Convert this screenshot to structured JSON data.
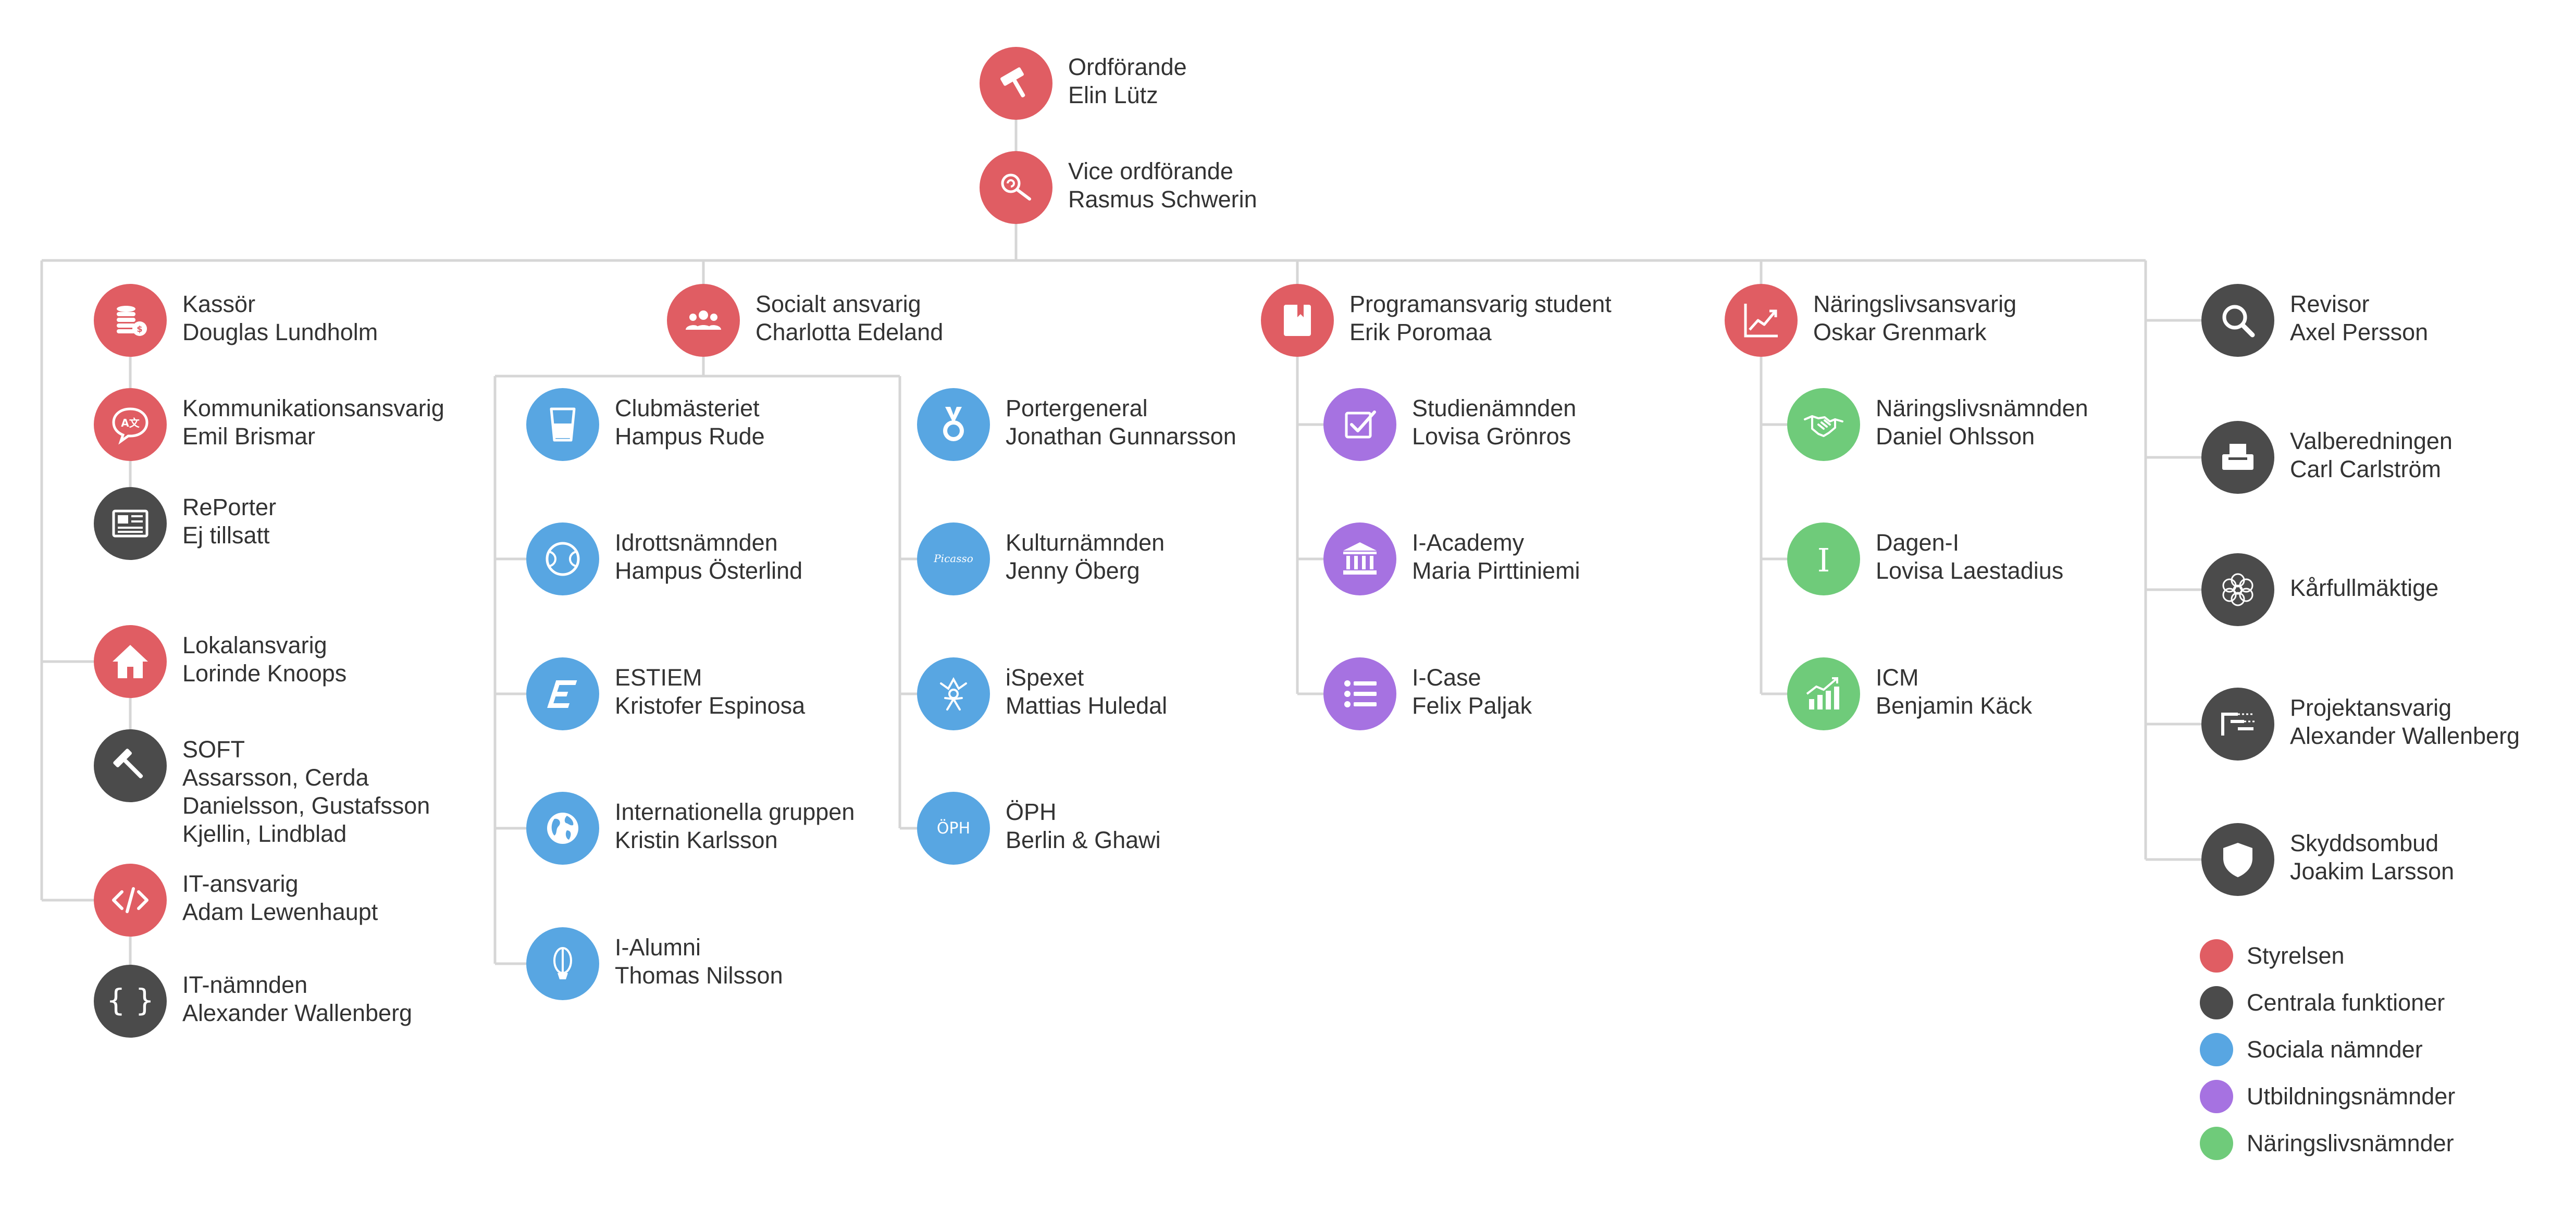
{
  "colors": {
    "styrelsen": "#e05d63",
    "centrala": "#4b4b4b",
    "sociala": "#58a6e2",
    "utbildning": "#a672e1",
    "naringsliv": "#6fcb7a",
    "lines": "#d6d6d6"
  },
  "nodes": {
    "ordforande": {
      "icon": "gavel-icon",
      "role": "Ordförande",
      "name": "Elin Lütz"
    },
    "vice": {
      "icon": "lollipop-icon",
      "role": "Vice ordförande",
      "name": "Rasmus Schwerin"
    },
    "kassor": {
      "icon": "coins-icon",
      "role": "Kassör",
      "name": "Douglas Lundholm"
    },
    "kommunikation": {
      "icon": "speech-bubble-icon",
      "role": "Kommunikationsansvarig",
      "name": "Emil Brismar"
    },
    "reporter": {
      "icon": "newspaper-icon",
      "role": "RePorter",
      "name": "Ej tillsatt"
    },
    "lokal": {
      "icon": "house-icon",
      "role": "Lokalansvarig",
      "name": "Lorinde Knoops"
    },
    "soft": {
      "icon": "hammer-icon",
      "role": "SOFT",
      "lines": [
        "Assarsson, Cerda",
        "Danielsson, Gustafsson",
        "Kjellin, Lindblad"
      ]
    },
    "it": {
      "icon": "code-icon",
      "role": "IT-ansvarig",
      "name": "Adam Lewenhaupt"
    },
    "itnamnden": {
      "icon": "braces-icon",
      "role": "IT-nämnden",
      "name": "Alexander Wallenberg"
    },
    "socialt": {
      "icon": "people-icon",
      "role": "Socialt ansvarig",
      "name": "Charlotta Edeland"
    },
    "club": {
      "icon": "glass-icon",
      "role": "Clubmästeriet",
      "name": "Hampus Rude"
    },
    "idrott": {
      "icon": "tennis-ball-icon",
      "role": "Idrottsnämnden",
      "name": "Hampus Österlind"
    },
    "estiem": {
      "icon": "estiem-logo-icon",
      "role": "ESTIEM",
      "name": "Kristofer Espinosa"
    },
    "internationella": {
      "icon": "globe-icon",
      "role": "Internationella gruppen",
      "name": "Kristin Karlsson"
    },
    "ialumni": {
      "icon": "alumni-logo-icon",
      "role": "I-Alumni",
      "name": "Thomas Nilsson"
    },
    "porter": {
      "icon": "medal-icon",
      "role": "Portergeneral",
      "name": "Jonathan Gunnarsson"
    },
    "kultur": {
      "icon": "picasso-logo-icon",
      "role": "Kulturnämnden",
      "name": "Jenny Öberg",
      "logo_text": "Picasso"
    },
    "ispexet": {
      "icon": "jester-icon",
      "role": "iSpexet",
      "name": "Mattias Huledal"
    },
    "oph": {
      "icon": "oph-logo-icon",
      "role": "ÖPH",
      "name": "Berlin & Ghawi",
      "logo_text": "ÖPH"
    },
    "program": {
      "icon": "book-icon",
      "role": "Programansvarig student",
      "name": "Erik Poromaa"
    },
    "studie": {
      "icon": "checkbox-icon",
      "role": "Studienämnden",
      "name": "Lovisa Grönros"
    },
    "iacademy": {
      "icon": "institution-icon",
      "role": "I-Academy",
      "name": "Maria Pirttiniemi"
    },
    "icase": {
      "icon": "list-icon",
      "role": "I-Case",
      "name": "Felix Paljak"
    },
    "naringsliv": {
      "icon": "chart-icon",
      "role": "Näringslivsansvarig",
      "name": "Oskar Grenmark"
    },
    "nlnamnden": {
      "icon": "handshake-icon",
      "role": "Näringslivsnämnden",
      "name": "Daniel Ohlsson"
    },
    "dagen": {
      "icon": "dagen-i-logo-icon",
      "role": "Dagen-I",
      "name": "Lovisa Laestadius",
      "logo_text": "I"
    },
    "icm": {
      "icon": "growth-chart-icon",
      "role": "ICM",
      "name": "Benjamin Käck"
    },
    "revisor": {
      "icon": "magnifier-icon",
      "role": "Revisor",
      "name": "Axel Persson"
    },
    "valberedning": {
      "icon": "ballot-box-icon",
      "role": "Valberedningen",
      "name": "Carl Carlström"
    },
    "karfull": {
      "icon": "flower-icon",
      "role": "Kårfullmäktige"
    },
    "projekt": {
      "icon": "gantt-icon",
      "role": "Projektansvarig",
      "name": "Alexander Wallenberg"
    },
    "skydd": {
      "icon": "shield-icon",
      "role": "Skyddsombud",
      "name": "Joakim Larsson"
    }
  },
  "legend": [
    {
      "label": "Styrelsen",
      "color": "#e05d63"
    },
    {
      "label": "Centrala funktioner",
      "color": "#4b4b4b"
    },
    {
      "label": "Sociala nämnder",
      "color": "#58a6e2"
    },
    {
      "label": "Utbildningsnämnder",
      "color": "#a672e1"
    },
    {
      "label": "Näringslivsnämnder",
      "color": "#6fcb7a"
    }
  ]
}
